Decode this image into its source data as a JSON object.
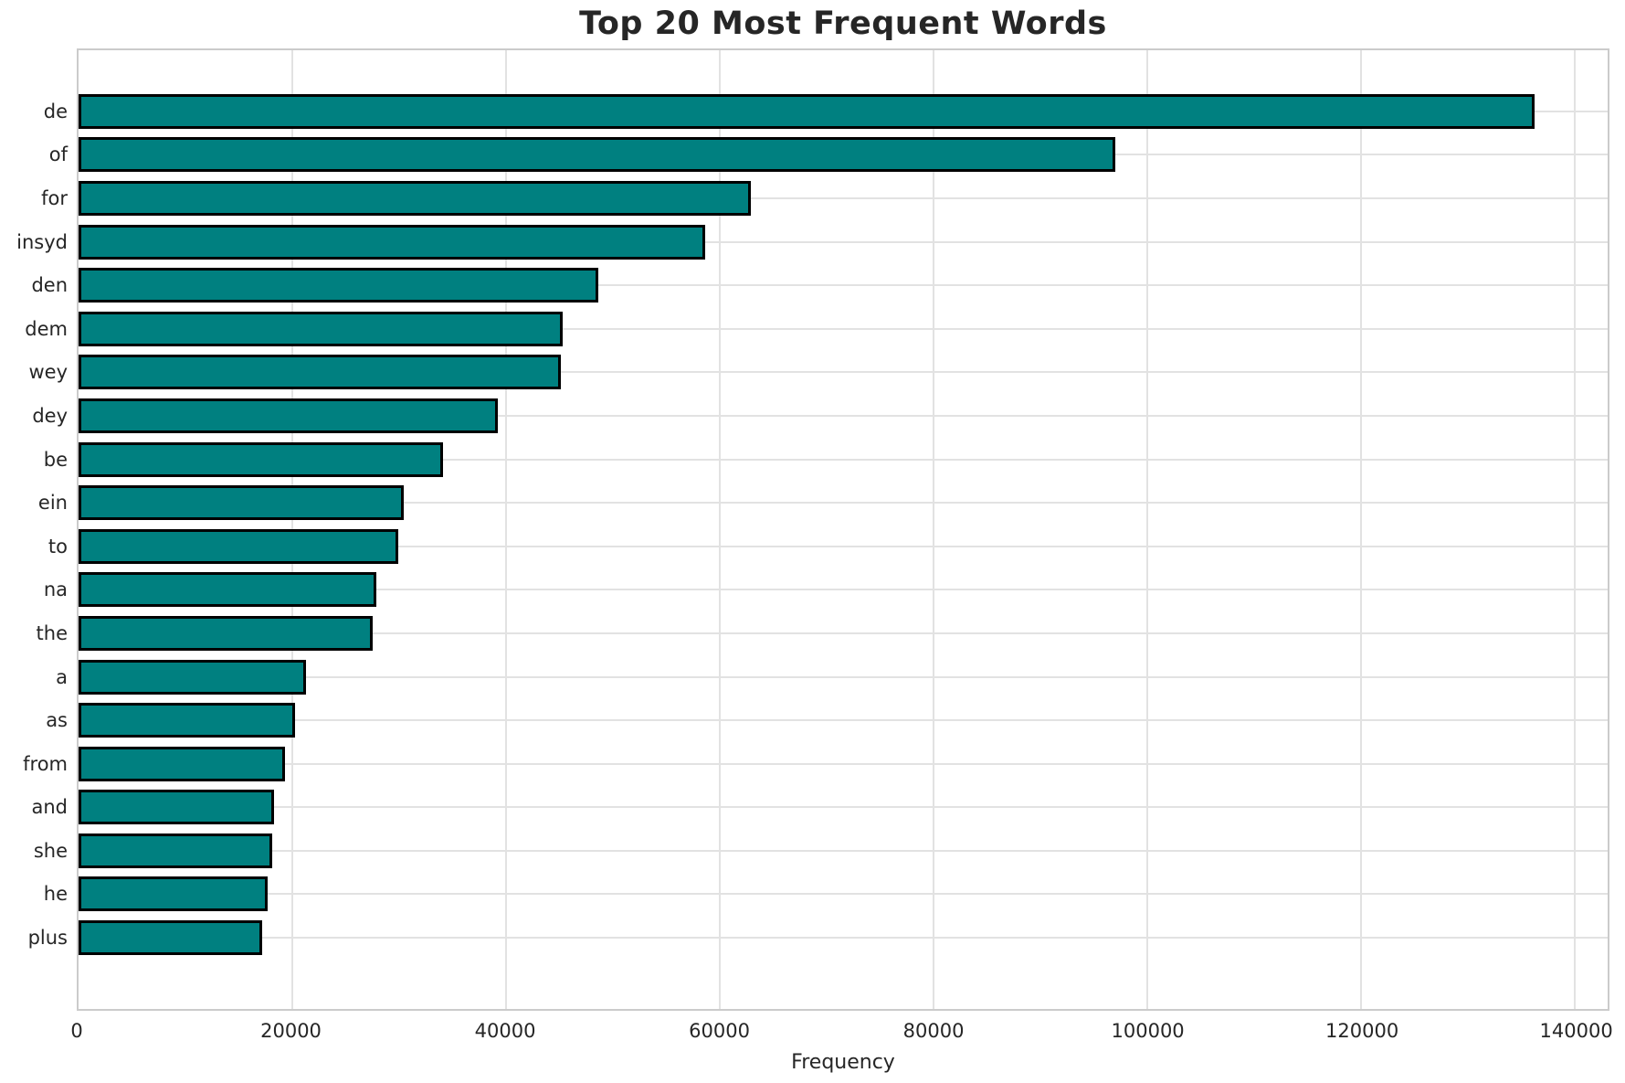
{
  "chart_data": {
    "type": "bar",
    "orientation": "horizontal",
    "title": "Top 20 Most Frequent Words",
    "xlabel": "Frequency",
    "ylabel": "",
    "categories": [
      "de",
      "of",
      "for",
      "insyd",
      "den",
      "dem",
      "wey",
      "dey",
      "be",
      "ein",
      "to",
      "na",
      "the",
      "a",
      "as",
      "from",
      "and",
      "she",
      "he",
      "plus"
    ],
    "values": [
      136300,
      97000,
      62900,
      58600,
      48600,
      45300,
      45100,
      39200,
      34100,
      30400,
      29900,
      27900,
      27500,
      21300,
      20300,
      19300,
      18300,
      18100,
      17700,
      17200
    ],
    "xlim": [
      0,
      143100
    ],
    "xticks": [
      0,
      20000,
      40000,
      60000,
      80000,
      100000,
      120000,
      140000
    ],
    "xtick_labels": [
      "0",
      "20000",
      "40000",
      "60000",
      "80000",
      "100000",
      "120000",
      "140000"
    ],
    "grid": true,
    "legend": "none",
    "bar_color": "#008080",
    "bar_edge_color": "#000000",
    "grid_color": "#e2e2e2",
    "spine_color": "#cbcbcb",
    "text_color": "#262626",
    "background_color": "#ffffff"
  }
}
